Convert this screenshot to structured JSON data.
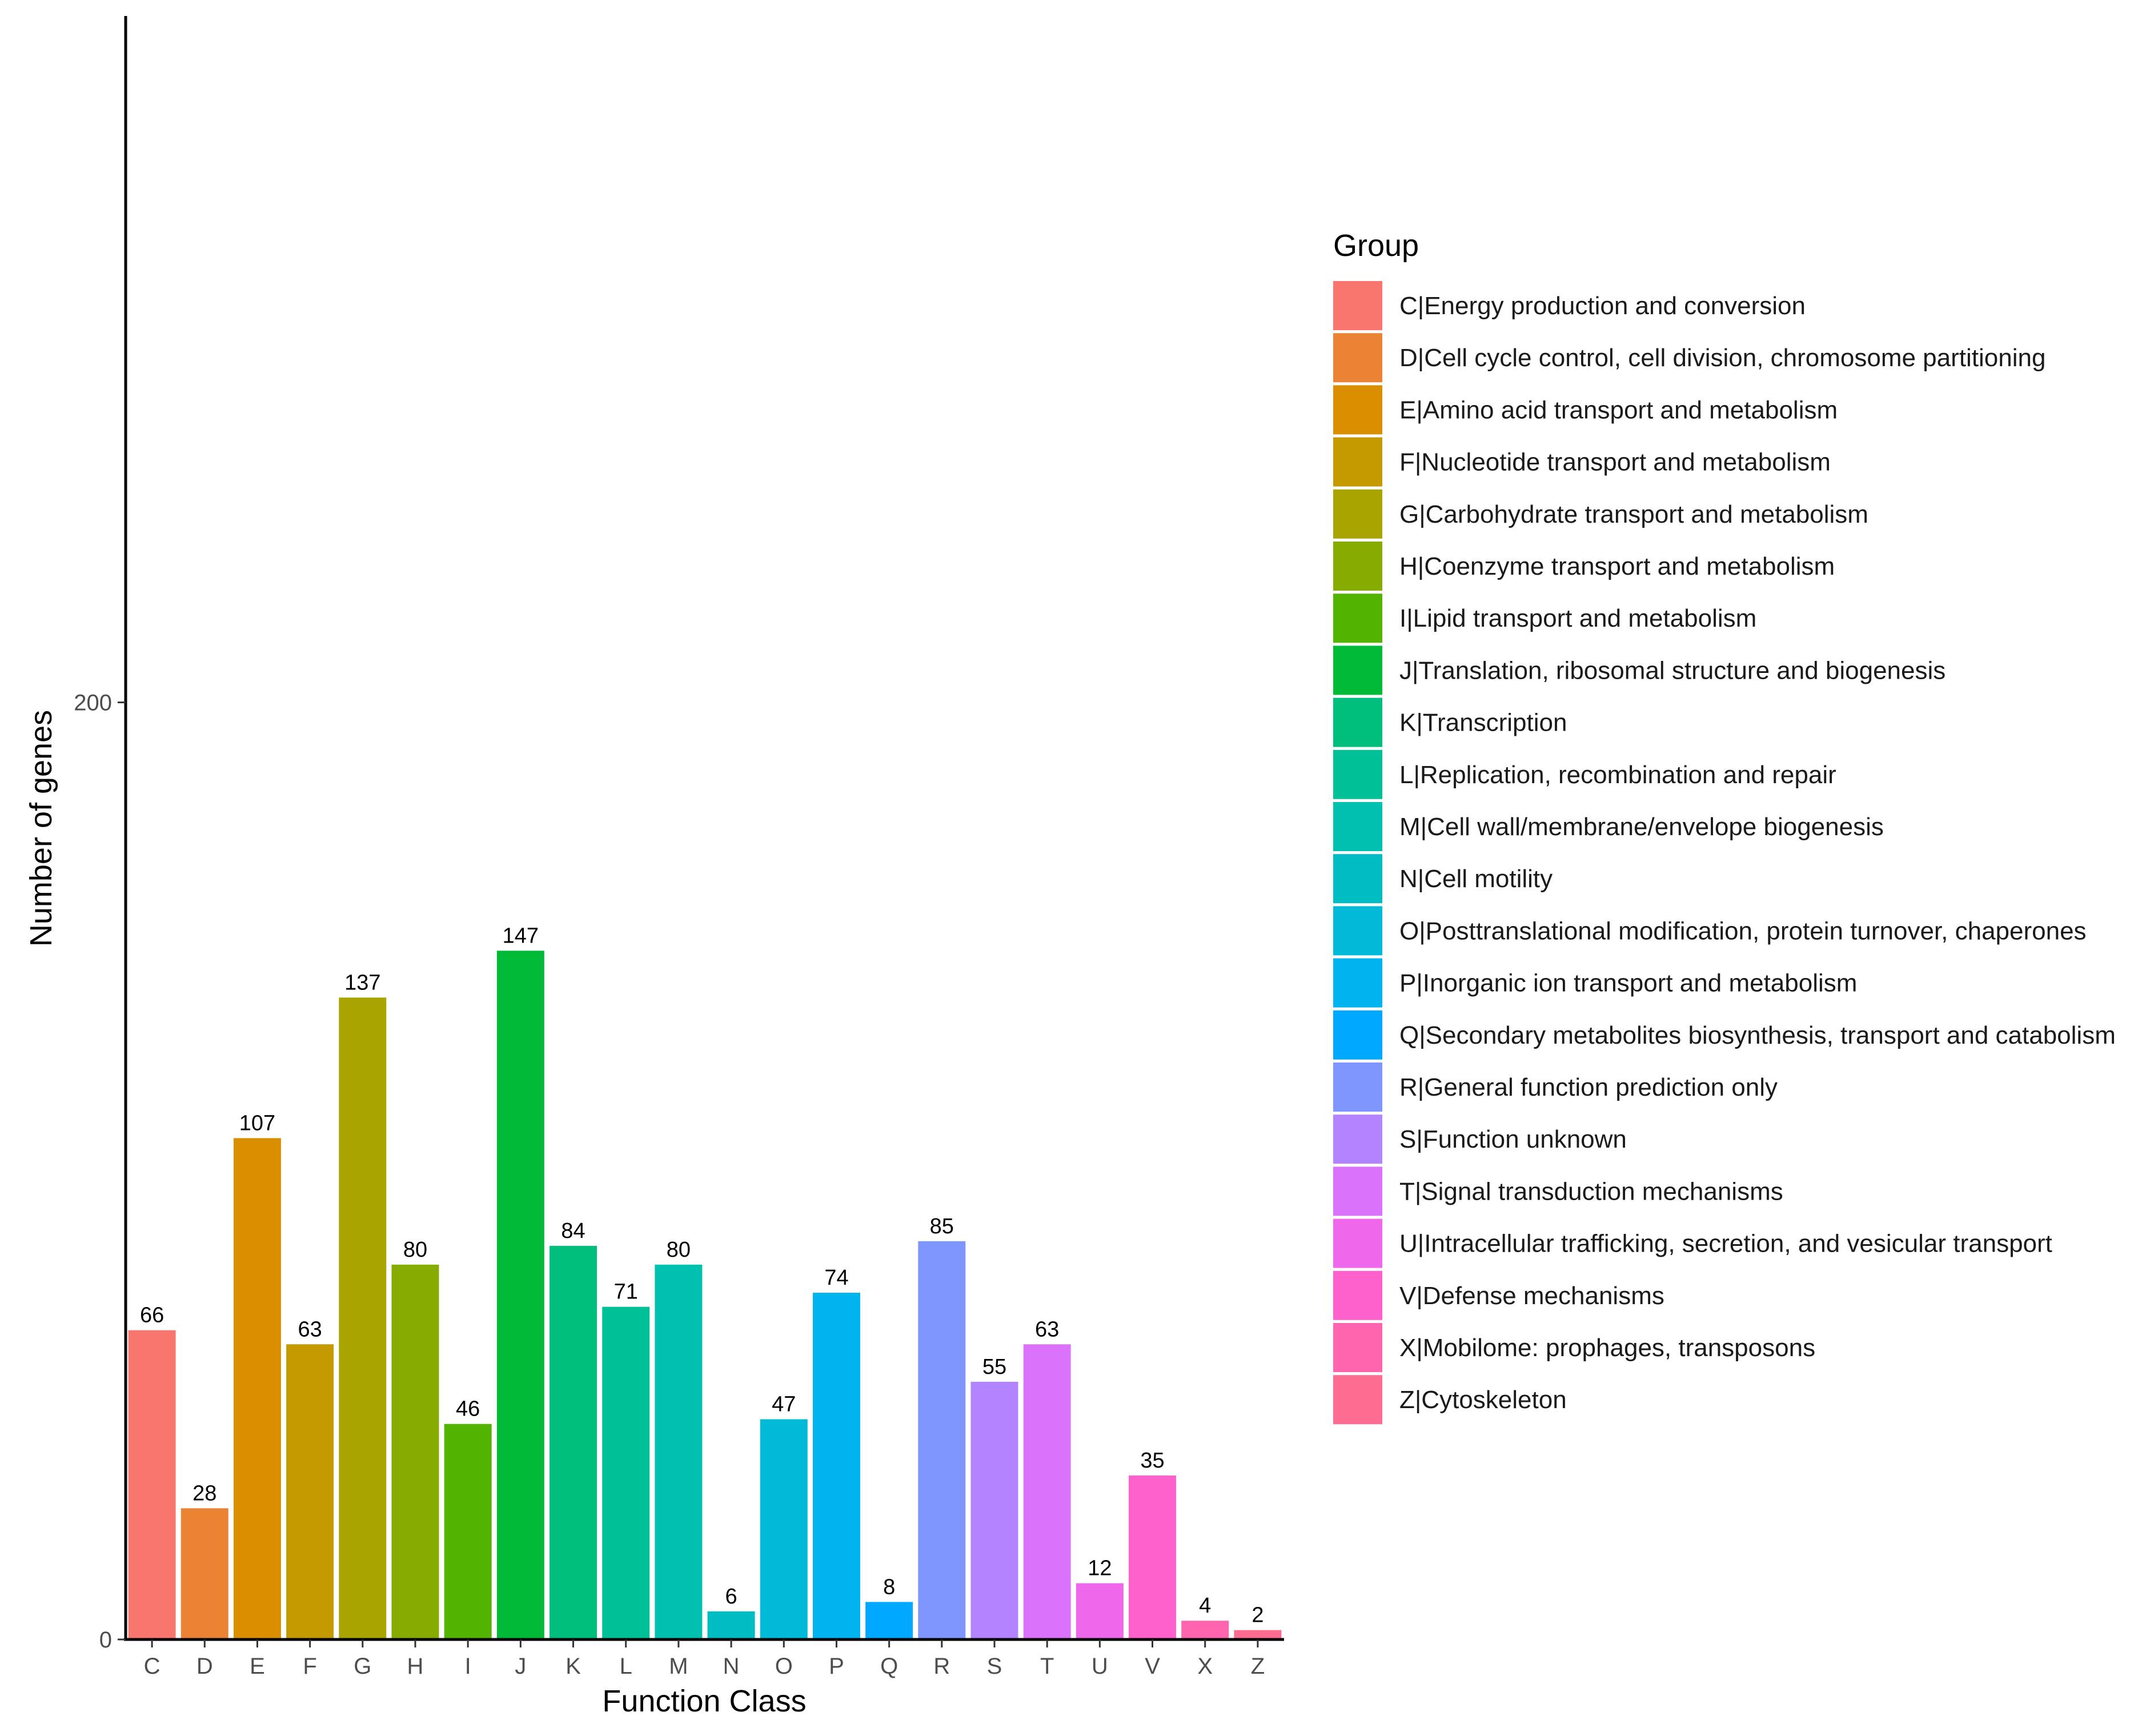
{
  "chart_data": {
    "type": "bar",
    "title": "",
    "xlabel": "Function Class",
    "ylabel": "Number of genes",
    "ylim": [
      0,
      346.5
    ],
    "yticks": [
      0,
      200
    ],
    "grid": false,
    "legend_position": "right",
    "legend_title": "Group",
    "categories": [
      "C",
      "D",
      "E",
      "F",
      "G",
      "H",
      "I",
      "J",
      "K",
      "L",
      "M",
      "N",
      "O",
      "P",
      "Q",
      "R",
      "S",
      "T",
      "U",
      "V",
      "X",
      "Z"
    ],
    "values": [
      66,
      28,
      107,
      63,
      137,
      80,
      46,
      147,
      84,
      71,
      80,
      6,
      47,
      74,
      8,
      85,
      55,
      63,
      12,
      35,
      4,
      2
    ],
    "colors": [
      "#F8766D",
      "#EB8335",
      "#DA8F00",
      "#C49A00",
      "#A9A400",
      "#86AC00",
      "#53B400",
      "#00BA38",
      "#00BF7D",
      "#00C097",
      "#00C0AF",
      "#00BDC4",
      "#00BAD8",
      "#00B4EF",
      "#00A9FF",
      "#7F96FF",
      "#B284FF",
      "#DB72FB",
      "#EF67EB",
      "#FF61CC",
      "#FF65AE",
      "#FF6C91"
    ],
    "legend": [
      "C|Energy production and conversion",
      "D|Cell cycle control, cell division, chromosome partitioning",
      "E|Amino acid transport and metabolism",
      "F|Nucleotide transport and metabolism",
      "G|Carbohydrate transport and metabolism",
      "H|Coenzyme transport and metabolism",
      "I|Lipid transport and metabolism",
      "J|Translation, ribosomal structure and biogenesis",
      "K|Transcription",
      "L|Replication, recombination and repair",
      "M|Cell wall/membrane/envelope biogenesis",
      "N|Cell motility",
      "O|Posttranslational modification, protein turnover, chaperones",
      "P|Inorganic ion transport and metabolism",
      "Q|Secondary metabolites biosynthesis, transport and catabolism",
      "R|General function prediction only",
      "S|Function unknown",
      "T|Signal transduction mechanisms",
      "U|Intracellular trafficking, secretion, and vesicular transport",
      "V|Defense mechanisms",
      "X|Mobilome: prophages, transposons",
      "Z|Cytoskeleton"
    ]
  }
}
